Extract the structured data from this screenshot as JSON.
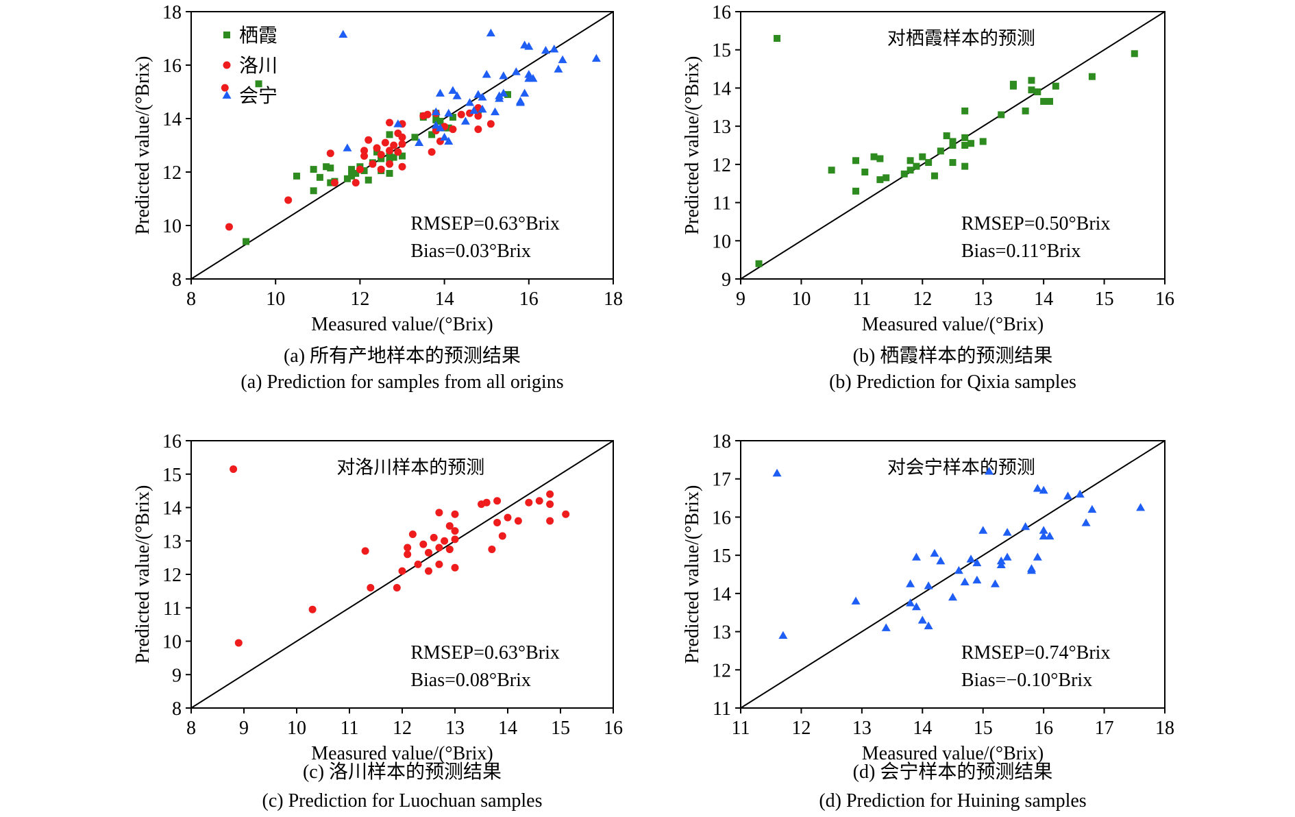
{
  "colors": {
    "qixia": "#2e8b1f",
    "luochuan": "#ee1c1c",
    "huining": "#1e5ef5"
  },
  "chart_data": [
    {
      "id": "a",
      "type": "scatter",
      "xlabel": "Measured value/(°Brix)",
      "ylabel": "Predicted value/(°Brix)",
      "xlim": [
        8,
        18
      ],
      "ylim": [
        8,
        18
      ],
      "xticks": [
        8,
        10,
        12,
        14,
        16,
        18
      ],
      "yticks": [
        8,
        10,
        12,
        14,
        16,
        18
      ],
      "title": "",
      "annotations": [
        "RMSEP=0.63°Brix",
        "Bias=0.03°Brix"
      ],
      "caption_cn": "(a) 所有产地样本的预测结果",
      "caption_en": "(a) Prediction for samples from all origins",
      "legend": [
        {
          "label": "栖霞",
          "marker": "square",
          "color_key": "qixia"
        },
        {
          "label": "洛川",
          "marker": "circle",
          "color_key": "luochuan"
        },
        {
          "label": "会宁",
          "marker": "triangle",
          "color_key": "huining"
        }
      ],
      "series_refs": [
        "qixia",
        "luochuan",
        "huining"
      ]
    },
    {
      "id": "b",
      "type": "scatter",
      "xlabel": "Measured value/(°Brix)",
      "ylabel": "Predicted value/(°Brix)",
      "xlim": [
        9,
        16
      ],
      "ylim": [
        9,
        16
      ],
      "xticks": [
        9,
        10,
        11,
        12,
        13,
        14,
        15,
        16
      ],
      "yticks": [
        9,
        10,
        11,
        12,
        13,
        14,
        15,
        16
      ],
      "title": "对栖霞样本的预测",
      "annotations": [
        "RMSEP=0.50°Brix",
        "Bias=0.11°Brix"
      ],
      "caption_cn": "(b) 栖霞样本的预测结果",
      "caption_en": "(b) Prediction for Qixia samples",
      "series_refs": [
        "qixia"
      ]
    },
    {
      "id": "c",
      "type": "scatter",
      "xlabel": "Measured value/(°Brix)",
      "ylabel": "Predicted value/(°Brix)",
      "xlim": [
        8,
        16
      ],
      "ylim": [
        8,
        16
      ],
      "xticks": [
        8,
        9,
        10,
        11,
        12,
        13,
        14,
        15,
        16
      ],
      "yticks": [
        8,
        9,
        10,
        11,
        12,
        13,
        14,
        15,
        16
      ],
      "title": "对洛川样本的预测",
      "annotations": [
        "RMSEP=0.63°Brix",
        "Bias=0.08°Brix"
      ],
      "caption_cn": "(c) 洛川样本的预测结果",
      "caption_en": "(c) Prediction for Luochuan samples",
      "series_refs": [
        "luochuan"
      ]
    },
    {
      "id": "d",
      "type": "scatter",
      "xlabel": "Measured value/(°Brix)",
      "ylabel": "Predicted value/(°Brix)",
      "xlim": [
        11,
        18
      ],
      "ylim": [
        11,
        18
      ],
      "xticks": [
        11,
        12,
        13,
        14,
        15,
        16,
        17,
        18
      ],
      "yticks": [
        11,
        12,
        13,
        14,
        15,
        16,
        17,
        18
      ],
      "title": "对会宁样本的预测",
      "annotations": [
        "RMSEP=0.74°Brix",
        "Bias=−0.10°Brix"
      ],
      "caption_cn": "(d) 会宁样本的预测结果",
      "caption_en": "(d) Prediction for Huining samples",
      "series_refs": [
        "huining"
      ]
    }
  ],
  "series": {
    "qixia": {
      "name": "栖霞",
      "marker": "square",
      "points": [
        [
          9.3,
          9.4
        ],
        [
          9.6,
          15.3
        ],
        [
          10.5,
          11.85
        ],
        [
          10.9,
          12.1
        ],
        [
          10.9,
          11.3
        ],
        [
          11.05,
          11.8
        ],
        [
          11.2,
          12.2
        ],
        [
          11.3,
          12.15
        ],
        [
          11.3,
          11.6
        ],
        [
          11.4,
          11.65
        ],
        [
          11.7,
          11.75
        ],
        [
          11.8,
          11.85
        ],
        [
          11.8,
          12.1
        ],
        [
          11.9,
          11.95
        ],
        [
          12.0,
          12.2
        ],
        [
          12.1,
          12.05
        ],
        [
          12.2,
          11.7
        ],
        [
          12.3,
          12.35
        ],
        [
          12.4,
          12.75
        ],
        [
          12.5,
          12.5
        ],
        [
          12.5,
          12.6
        ],
        [
          12.5,
          12.05
        ],
        [
          12.7,
          12.5
        ],
        [
          12.7,
          12.7
        ],
        [
          12.7,
          11.95
        ],
        [
          12.7,
          13.4
        ],
        [
          12.8,
          12.55
        ],
        [
          13.0,
          12.6
        ],
        [
          13.3,
          13.3
        ],
        [
          13.5,
          14.1
        ],
        [
          13.5,
          14.05
        ],
        [
          13.7,
          13.4
        ],
        [
          13.8,
          14.2
        ],
        [
          13.8,
          13.95
        ],
        [
          13.9,
          13.9
        ],
        [
          14.0,
          13.65
        ],
        [
          14.1,
          13.65
        ],
        [
          14.2,
          14.05
        ],
        [
          14.8,
          14.3
        ],
        [
          15.5,
          14.9
        ]
      ]
    },
    "luochuan": {
      "name": "洛川",
      "marker": "circle",
      "points": [
        [
          8.8,
          15.15
        ],
        [
          8.9,
          9.95
        ],
        [
          10.3,
          10.95
        ],
        [
          11.3,
          12.7
        ],
        [
          11.4,
          11.6
        ],
        [
          11.9,
          11.6
        ],
        [
          12.0,
          12.1
        ],
        [
          12.1,
          12.8
        ],
        [
          12.1,
          12.6
        ],
        [
          12.2,
          13.2
        ],
        [
          12.3,
          12.3
        ],
        [
          12.4,
          12.9
        ],
        [
          12.5,
          12.65
        ],
        [
          12.5,
          12.1
        ],
        [
          12.6,
          13.1
        ],
        [
          12.7,
          13.85
        ],
        [
          12.7,
          12.8
        ],
        [
          12.7,
          12.3
        ],
        [
          12.8,
          13.0
        ],
        [
          12.9,
          12.75
        ],
        [
          12.9,
          13.45
        ],
        [
          13.0,
          13.8
        ],
        [
          13.0,
          13.3
        ],
        [
          13.0,
          13.05
        ],
        [
          13.0,
          12.2
        ],
        [
          13.5,
          14.1
        ],
        [
          13.6,
          14.15
        ],
        [
          13.7,
          12.75
        ],
        [
          13.8,
          13.55
        ],
        [
          13.8,
          14.2
        ],
        [
          13.9,
          13.15
        ],
        [
          14.0,
          13.7
        ],
        [
          14.2,
          13.6
        ],
        [
          14.4,
          14.15
        ],
        [
          14.6,
          14.2
        ],
        [
          14.8,
          14.4
        ],
        [
          14.8,
          14.1
        ],
        [
          14.8,
          13.6
        ],
        [
          15.1,
          13.8
        ]
      ]
    },
    "huining": {
      "name": "会宁",
      "marker": "triangle",
      "points": [
        [
          11.6,
          17.15
        ],
        [
          11.7,
          12.9
        ],
        [
          12.9,
          13.8
        ],
        [
          13.4,
          13.1
        ],
        [
          13.8,
          14.25
        ],
        [
          13.8,
          13.75
        ],
        [
          13.9,
          14.95
        ],
        [
          13.9,
          13.65
        ],
        [
          14.0,
          13.3
        ],
        [
          14.1,
          13.15
        ],
        [
          14.2,
          15.05
        ],
        [
          14.1,
          14.2
        ],
        [
          14.3,
          14.85
        ],
        [
          14.5,
          13.9
        ],
        [
          14.6,
          14.6
        ],
        [
          14.7,
          14.3
        ],
        [
          14.8,
          14.9
        ],
        [
          14.9,
          14.35
        ],
        [
          14.9,
          14.8
        ],
        [
          15.0,
          15.65
        ],
        [
          15.1,
          17.2
        ],
        [
          15.2,
          14.25
        ],
        [
          15.3,
          14.85
        ],
        [
          15.3,
          14.75
        ],
        [
          15.4,
          15.6
        ],
        [
          15.4,
          14.95
        ],
        [
          15.7,
          15.75
        ],
        [
          15.8,
          14.6
        ],
        [
          15.8,
          14.65
        ],
        [
          15.9,
          14.95
        ],
        [
          15.9,
          16.75
        ],
        [
          16.0,
          16.7
        ],
        [
          16.0,
          15.65
        ],
        [
          16.0,
          15.5
        ],
        [
          16.1,
          15.5
        ],
        [
          16.4,
          16.55
        ],
        [
          16.6,
          16.6
        ],
        [
          16.7,
          15.85
        ],
        [
          16.8,
          16.2
        ],
        [
          17.6,
          16.25
        ]
      ]
    }
  }
}
